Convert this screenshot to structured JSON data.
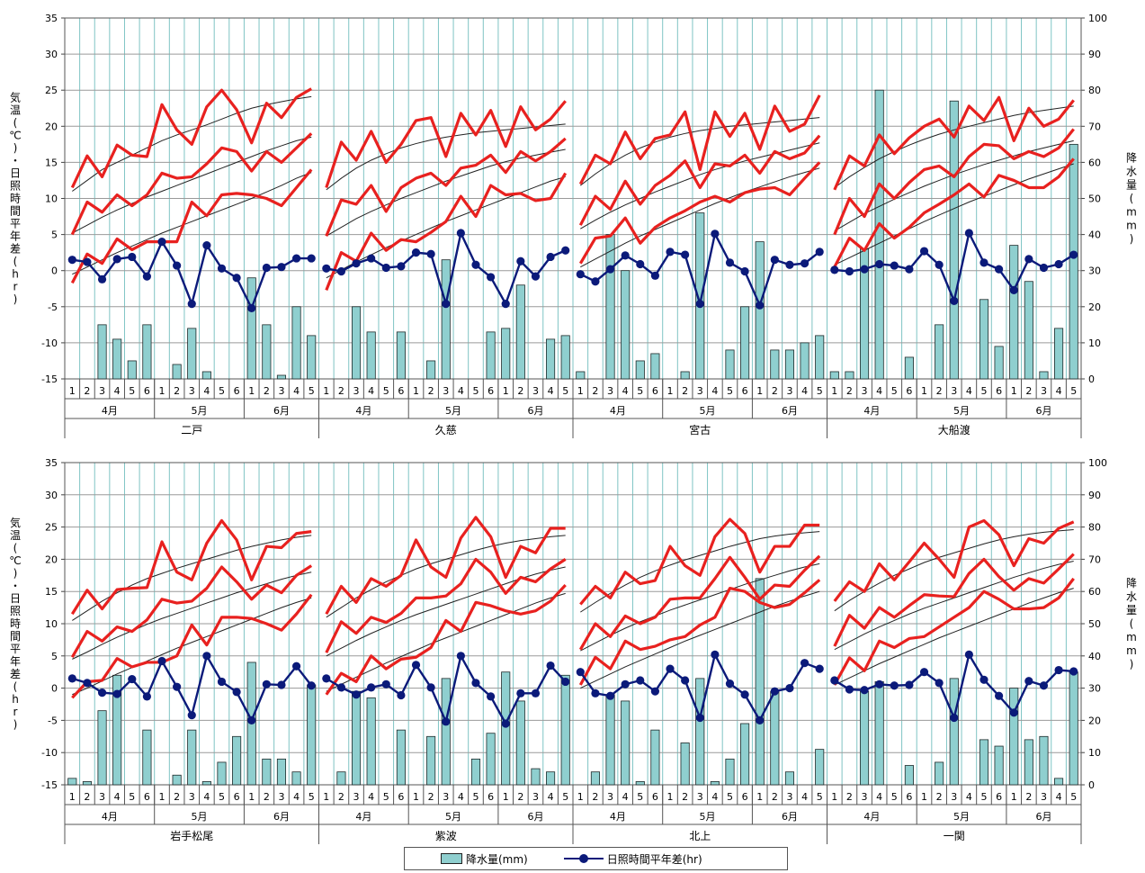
{
  "chart_data": {
    "type": "bar+line",
    "left_axis": {
      "label": "気温(℃)・日照時間平年差(hr)",
      "ylim": [
        -15,
        35
      ],
      "ticks": [
        -15,
        -10,
        -5,
        0,
        5,
        10,
        15,
        20,
        25,
        30,
        35
      ]
    },
    "right_axis": {
      "label": "降水量(mm)",
      "ylim": [
        0,
        100
      ],
      "ticks": [
        0,
        10,
        20,
        30,
        40,
        50,
        60,
        70,
        80,
        90,
        100
      ]
    },
    "period_labels": [
      "1",
      "2",
      "3",
      "4",
      "5",
      "6",
      "1",
      "2",
      "3",
      "4",
      "5",
      "6",
      "1",
      "2",
      "3",
      "4",
      "5"
    ],
    "month_labels": [
      "4月",
      "5月",
      "6月"
    ],
    "legend": {
      "precip": "降水量(mm)",
      "sun": "日照時間平年差(hr)"
    },
    "colors": {
      "precip_fill": "#8fcfcf",
      "sun": "#0b1a7a",
      "temp": "#e8211f",
      "normal": "#222222",
      "grid": "#7fc4c4"
    },
    "stations": [
      {
        "name": "二戸",
        "precip": [
          0,
          0,
          15,
          11,
          5,
          15,
          0,
          4,
          14,
          2,
          0,
          0,
          28,
          15,
          1,
          20,
          12
        ],
        "sun": [
          1.5,
          1.2,
          -1.2,
          1.6,
          1.9,
          -0.8,
          4.0,
          0.7,
          -4.6,
          3.5,
          0.3,
          -1.0,
          -5.2,
          0.4,
          0.5,
          1.7,
          1.7
        ],
        "tmax": [
          11.5,
          15.9,
          13.0,
          17.4,
          16.0,
          15.8,
          23.0,
          19.5,
          17.5,
          22.7,
          25.0,
          22.3,
          17.7,
          23.2,
          21.2,
          24.0,
          25.2
        ],
        "tmean": [
          5.0,
          9.5,
          8.1,
          10.5,
          9.0,
          10.5,
          13.5,
          12.8,
          13.0,
          14.8,
          17.0,
          16.5,
          13.8,
          16.5,
          15.0,
          17.0,
          19.0
        ],
        "tmin": [
          -1.7,
          2.3,
          1.0,
          4.4,
          2.9,
          4.0,
          4.0,
          4.0,
          9.5,
          7.6,
          10.5,
          10.7,
          10.5,
          10.0,
          9.0,
          11.5,
          14.0
        ],
        "nmax": [
          11,
          12.5,
          14,
          15,
          16,
          17,
          18,
          18.8,
          19.5,
          20.2,
          21,
          21.8,
          22.5,
          23,
          23.4,
          23.8,
          24.1
        ],
        "nmean": [
          5.2,
          6.3,
          7.4,
          8.4,
          9.3,
          10.2,
          11,
          11.8,
          12.6,
          13.4,
          14.2,
          15,
          15.8,
          16.6,
          17.3,
          18,
          18.5
        ],
        "nmin": [
          -0.5,
          0.5,
          1.5,
          2.5,
          3.4,
          4.3,
          5.2,
          6,
          6.8,
          7.6,
          8.4,
          9.2,
          10,
          10.9,
          11.8,
          12.8,
          13.6
        ]
      },
      {
        "name": "久慈",
        "precip": [
          0,
          0,
          20,
          13,
          0,
          13,
          0,
          5,
          33,
          0,
          0,
          13,
          14,
          26,
          0,
          11,
          12
        ],
        "sun": [
          0.3,
          -0.1,
          1.0,
          1.7,
          0.4,
          0.6,
          2.5,
          2.3,
          -4.6,
          5.2,
          0.8,
          -0.9,
          -4.6,
          1.3,
          -0.8,
          1.9,
          2.8
        ],
        "tmax": [
          11.5,
          17.8,
          15.3,
          19.3,
          15.0,
          17.5,
          20.8,
          21.2,
          15.8,
          21.8,
          18.8,
          22.2,
          17.2,
          22.7,
          19.5,
          21.0,
          23.5
        ],
        "tmean": [
          4.8,
          9.8,
          9.2,
          11.8,
          8.2,
          11.5,
          12.8,
          13.5,
          11.8,
          14.2,
          14.6,
          16.0,
          13.6,
          16.5,
          15.2,
          16.5,
          18.3
        ],
        "tmin": [
          -2.7,
          2.5,
          1.3,
          5.2,
          2.8,
          4.3,
          4.0,
          5.3,
          6.8,
          10.3,
          7.5,
          11.8,
          10.5,
          10.7,
          9.7,
          10.0,
          13.5
        ],
        "nmax": [
          11.2,
          12.8,
          14.2,
          15.3,
          16.2,
          17,
          17.6,
          18.1,
          18.5,
          18.8,
          19.1,
          19.3,
          19.5,
          19.7,
          19.9,
          20.1,
          20.3
        ],
        "nmean": [
          4.8,
          6,
          7.2,
          8.2,
          9.1,
          10,
          10.8,
          11.6,
          12.4,
          13.1,
          13.8,
          14.5,
          15.1,
          15.6,
          16,
          16.4,
          16.8
        ],
        "nmin": [
          -1,
          0.1,
          1.2,
          2.2,
          3.2,
          4.1,
          5,
          5.9,
          6.8,
          7.6,
          8.4,
          9.2,
          10,
          10.8,
          11.6,
          12.4,
          13
        ]
      },
      {
        "name": "宮古",
        "precip": [
          2,
          0,
          40,
          30,
          5,
          7,
          0,
          2,
          46,
          0,
          8,
          20,
          38,
          8,
          8,
          10,
          12
        ],
        "sun": [
          -0.5,
          -1.5,
          0.2,
          2.1,
          0.9,
          -0.7,
          2.6,
          2.2,
          -4.6,
          5.1,
          1.1,
          -0.1,
          -4.8,
          1.5,
          0.8,
          1.0,
          2.6
        ],
        "tmax": [
          12.0,
          16.0,
          14.8,
          19.2,
          15.5,
          18.3,
          18.8,
          22.0,
          14.0,
          22.0,
          18.6,
          21.8,
          16.8,
          22.8,
          19.3,
          20.3,
          24.3
        ],
        "tmean": [
          6.3,
          10.3,
          8.5,
          12.4,
          9.2,
          11.8,
          13.2,
          15.2,
          11.5,
          14.8,
          14.5,
          16.0,
          13.5,
          16.5,
          15.5,
          16.3,
          18.7
        ],
        "tmin": [
          1.0,
          4.5,
          4.8,
          7.3,
          3.8,
          6.0,
          7.3,
          8.3,
          9.5,
          10.3,
          9.5,
          10.8,
          11.3,
          11.5,
          10.5,
          12.8,
          15.0
        ],
        "nmax": [
          11.8,
          13.4,
          14.8,
          16,
          17,
          17.8,
          18.5,
          19,
          19.4,
          19.7,
          20,
          20.2,
          20.4,
          20.6,
          20.8,
          21,
          21.2
        ],
        "nmean": [
          5.8,
          7,
          8.1,
          9.1,
          10,
          10.9,
          11.7,
          12.5,
          13.3,
          14,
          14.6,
          15.2,
          15.7,
          16.2,
          16.7,
          17.2,
          17.7
        ],
        "nmin": [
          0.5,
          1.6,
          2.7,
          3.8,
          4.8,
          5.7,
          6.6,
          7.5,
          8.4,
          9.3,
          10.1,
          10.9,
          11.6,
          12.3,
          13,
          13.6,
          14.2
        ]
      },
      {
        "name": "大船渡",
        "precip": [
          2,
          2,
          36,
          80,
          0,
          6,
          0,
          15,
          77,
          0,
          22,
          9,
          37,
          27,
          2,
          14,
          65
        ],
        "sun": [
          0.1,
          -0.1,
          0.2,
          0.9,
          0.7,
          0.2,
          2.7,
          0.8,
          -4.2,
          5.2,
          1.1,
          0.2,
          -2.7,
          1.6,
          0.4,
          0.9,
          2.2
        ],
        "tmax": [
          11.2,
          15.9,
          14.5,
          18.8,
          16.2,
          18.4,
          20.0,
          21.0,
          18.5,
          22.8,
          20.8,
          24.0,
          18.0,
          22.5,
          20.0,
          21.0,
          23.6
        ],
        "tmean": [
          5.0,
          10.0,
          7.5,
          12.0,
          10.0,
          12.2,
          14.0,
          14.5,
          13.0,
          15.8,
          17.5,
          17.3,
          15.5,
          16.5,
          15.8,
          17.0,
          19.6
        ],
        "tmin": [
          0.5,
          4.5,
          2.8,
          6.5,
          4.5,
          6.0,
          8.0,
          9.2,
          10.5,
          12.0,
          10.2,
          13.2,
          12.5,
          11.5,
          11.5,
          13.0,
          15.5
        ],
        "nmax": [
          11.5,
          13,
          14.3,
          15.5,
          16.5,
          17.4,
          18.2,
          18.9,
          19.5,
          20,
          20.5,
          21,
          21.5,
          21.9,
          22.2,
          22.5,
          22.8
        ],
        "nmean": [
          5.5,
          6.7,
          7.9,
          8.9,
          9.9,
          10.8,
          11.7,
          12.5,
          13.3,
          14,
          14.7,
          15.3,
          15.9,
          16.5,
          17,
          17.5,
          18
        ],
        "nmin": [
          0.8,
          1.8,
          2.8,
          3.8,
          4.8,
          5.8,
          6.8,
          7.7,
          8.6,
          9.5,
          10.3,
          11.1,
          11.9,
          12.7,
          13.4,
          14.1,
          14.8
        ]
      },
      {
        "name": "岩手松尾",
        "precip": [
          2,
          1,
          23,
          34,
          0,
          17,
          0,
          3,
          17,
          1,
          7,
          15,
          38,
          8,
          8,
          4,
          31
        ],
        "sun": [
          1.5,
          0.8,
          -0.7,
          -0.9,
          1.4,
          -1.3,
          4.2,
          0.2,
          -4.2,
          5.0,
          1.0,
          -0.6,
          -5.0,
          0.6,
          0.5,
          3.4,
          0.4
        ],
        "tmax": [
          11.5,
          15.2,
          12.3,
          15.3,
          15.5,
          15.6,
          22.7,
          18.0,
          16.8,
          22.5,
          26.0,
          23.0,
          16.8,
          22.0,
          21.8,
          24.0,
          24.3
        ],
        "tmean": [
          4.8,
          8.8,
          7.3,
          9.5,
          8.8,
          10.6,
          13.8,
          13.2,
          13.5,
          15.5,
          18.8,
          16.5,
          13.8,
          16.0,
          14.8,
          17.5,
          19.0
        ],
        "tmin": [
          -1.5,
          1.0,
          1.2,
          4.6,
          3.3,
          4.0,
          4.0,
          5.0,
          9.8,
          6.7,
          11.0,
          11.0,
          10.8,
          10.0,
          9.0,
          11.5,
          14.5
        ],
        "nmax": [
          10.5,
          12,
          13.5,
          14.8,
          16,
          17,
          17.8,
          18.6,
          19.3,
          20,
          20.7,
          21.4,
          22,
          22.5,
          23,
          23.4,
          23.7
        ],
        "nmean": [
          4.5,
          5.6,
          6.8,
          7.9,
          8.9,
          9.9,
          10.8,
          11.6,
          12.4,
          13.2,
          14,
          14.8,
          15.5,
          16.2,
          16.9,
          17.5,
          18
        ],
        "nmin": [
          -1,
          0,
          1.1,
          2.2,
          3.2,
          4.2,
          5.2,
          6.2,
          7.1,
          8,
          8.9,
          9.8,
          10.7,
          11.6,
          12.5,
          13.3,
          14
        ]
      },
      {
        "name": "紫波",
        "precip": [
          0,
          4,
          29,
          27,
          0,
          17,
          0,
          15,
          33,
          0,
          8,
          16,
          35,
          26,
          5,
          4,
          34
        ],
        "sun": [
          1.5,
          0.1,
          -1.0,
          0.1,
          0.6,
          -1.1,
          3.6,
          0.1,
          -5.2,
          5.0,
          0.8,
          -1.3,
          -5.5,
          -0.8,
          -0.8,
          3.5,
          1.0
        ],
        "tmax": [
          11.5,
          15.8,
          13.3,
          17.0,
          15.8,
          17.5,
          23.0,
          18.8,
          17.2,
          23.3,
          26.5,
          23.5,
          17.2,
          22.0,
          21.0,
          24.8,
          24.8
        ],
        "tmean": [
          5.5,
          10.3,
          8.5,
          11.0,
          10.2,
          11.6,
          14.0,
          14.0,
          14.3,
          16.2,
          20.0,
          18.0,
          14.7,
          17.2,
          16.5,
          18.5,
          20.0
        ],
        "tmin": [
          -1.0,
          2.3,
          1.0,
          5.0,
          3.0,
          4.5,
          4.8,
          6.3,
          10.5,
          8.8,
          13.3,
          12.8,
          12.0,
          11.5,
          12.0,
          13.5,
          16.0
        ],
        "nmax": [
          11,
          12.5,
          14,
          15.3,
          16.5,
          17.5,
          18.5,
          19.3,
          20,
          20.7,
          21.4,
          22,
          22.5,
          22.9,
          23.2,
          23.5,
          23.7
        ],
        "nmean": [
          5,
          6.2,
          7.4,
          8.5,
          9.5,
          10.5,
          11.4,
          12.2,
          13,
          13.8,
          14.6,
          15.4,
          16.2,
          17,
          17.7,
          18.3,
          18.8
        ],
        "nmin": [
          -0.5,
          0.6,
          1.7,
          2.8,
          3.9,
          4.9,
          5.9,
          6.9,
          7.8,
          8.7,
          9.6,
          10.5,
          11.4,
          12.3,
          13.2,
          14,
          14.7
        ]
      },
      {
        "name": "北上",
        "precip": [
          0,
          4,
          28,
          26,
          1,
          17,
          0,
          13,
          33,
          1,
          8,
          19,
          64,
          29,
          4,
          0,
          11
        ],
        "sun": [
          2.5,
          -0.8,
          -1.2,
          0.6,
          1.2,
          -0.5,
          3.0,
          1.2,
          -4.6,
          5.2,
          0.7,
          -1.0,
          -5.0,
          -0.5,
          0.0,
          3.9,
          3.0
        ],
        "tmax": [
          13.0,
          15.8,
          14.0,
          18.0,
          16.2,
          16.7,
          22.0,
          19.0,
          17.5,
          23.5,
          26.2,
          24.0,
          18.0,
          22.0,
          22.0,
          25.3,
          25.3
        ],
        "tmean": [
          6.0,
          10.0,
          8.0,
          11.2,
          10.0,
          11.0,
          13.8,
          14.0,
          14.0,
          17.0,
          20.3,
          17.2,
          13.8,
          16.0,
          15.8,
          18.3,
          20.5
        ],
        "tmin": [
          0.5,
          4.8,
          3.0,
          7.3,
          6.0,
          6.5,
          7.5,
          8.0,
          9.8,
          11.0,
          15.5,
          15.0,
          13.3,
          12.5,
          13.0,
          14.8,
          16.8
        ],
        "nmax": [
          11.8,
          13.3,
          14.7,
          16,
          17.2,
          18.2,
          19.1,
          19.9,
          20.6,
          21.3,
          22,
          22.6,
          23.2,
          23.6,
          23.9,
          24.1,
          24.3
        ],
        "nmean": [
          5.8,
          7,
          8.2,
          9.3,
          10.3,
          11.2,
          12.1,
          12.9,
          13.7,
          14.5,
          15.3,
          16.1,
          16.8,
          17.5,
          18.2,
          18.8,
          19.3
        ],
        "nmin": [
          0,
          1.1,
          2.2,
          3.3,
          4.3,
          5.3,
          6.3,
          7.3,
          8.2,
          9.1,
          10,
          10.9,
          11.8,
          12.7,
          13.5,
          14.3,
          15
        ]
      },
      {
        "name": "一関",
        "precip": [
          0,
          0,
          29,
          32,
          0,
          6,
          0,
          7,
          33,
          0,
          14,
          12,
          30,
          14,
          15,
          2,
          35
        ],
        "sun": [
          1.2,
          -0.2,
          -0.3,
          0.6,
          0.4,
          0.5,
          2.5,
          0.8,
          -4.6,
          5.2,
          1.3,
          -1.2,
          -3.8,
          1.1,
          0.4,
          2.8,
          2.6
        ],
        "tmax": [
          13.5,
          16.5,
          15.0,
          19.3,
          16.8,
          19.6,
          22.5,
          20.0,
          17.2,
          25.0,
          26.0,
          23.8,
          19.0,
          23.2,
          22.5,
          24.8,
          25.8
        ],
        "tmean": [
          6.5,
          11.3,
          9.3,
          12.5,
          11.0,
          12.8,
          14.5,
          14.3,
          14.2,
          17.8,
          20.0,
          17.3,
          15.2,
          17.0,
          16.3,
          18.5,
          20.8
        ],
        "tmin": [
          0.5,
          4.7,
          2.7,
          7.3,
          6.3,
          7.7,
          8.0,
          9.5,
          11.0,
          12.5,
          15.0,
          13.8,
          12.3,
          12.3,
          12.5,
          14.0,
          17.0
        ],
        "nmax": [
          12,
          13.6,
          15,
          16.3,
          17.5,
          18.5,
          19.5,
          20.3,
          21,
          21.7,
          22.4,
          23,
          23.5,
          23.9,
          24.2,
          24.4,
          24.6
        ],
        "nmean": [
          6,
          7.2,
          8.4,
          9.5,
          10.5,
          11.5,
          12.4,
          13.2,
          14,
          14.8,
          15.6,
          16.4,
          17.2,
          17.9,
          18.6,
          19.2,
          19.7
        ],
        "nmin": [
          0.5,
          1.6,
          2.7,
          3.8,
          4.8,
          5.8,
          6.8,
          7.8,
          8.7,
          9.6,
          10.5,
          11.4,
          12.3,
          13.2,
          14,
          14.8,
          15.5
        ]
      }
    ]
  }
}
